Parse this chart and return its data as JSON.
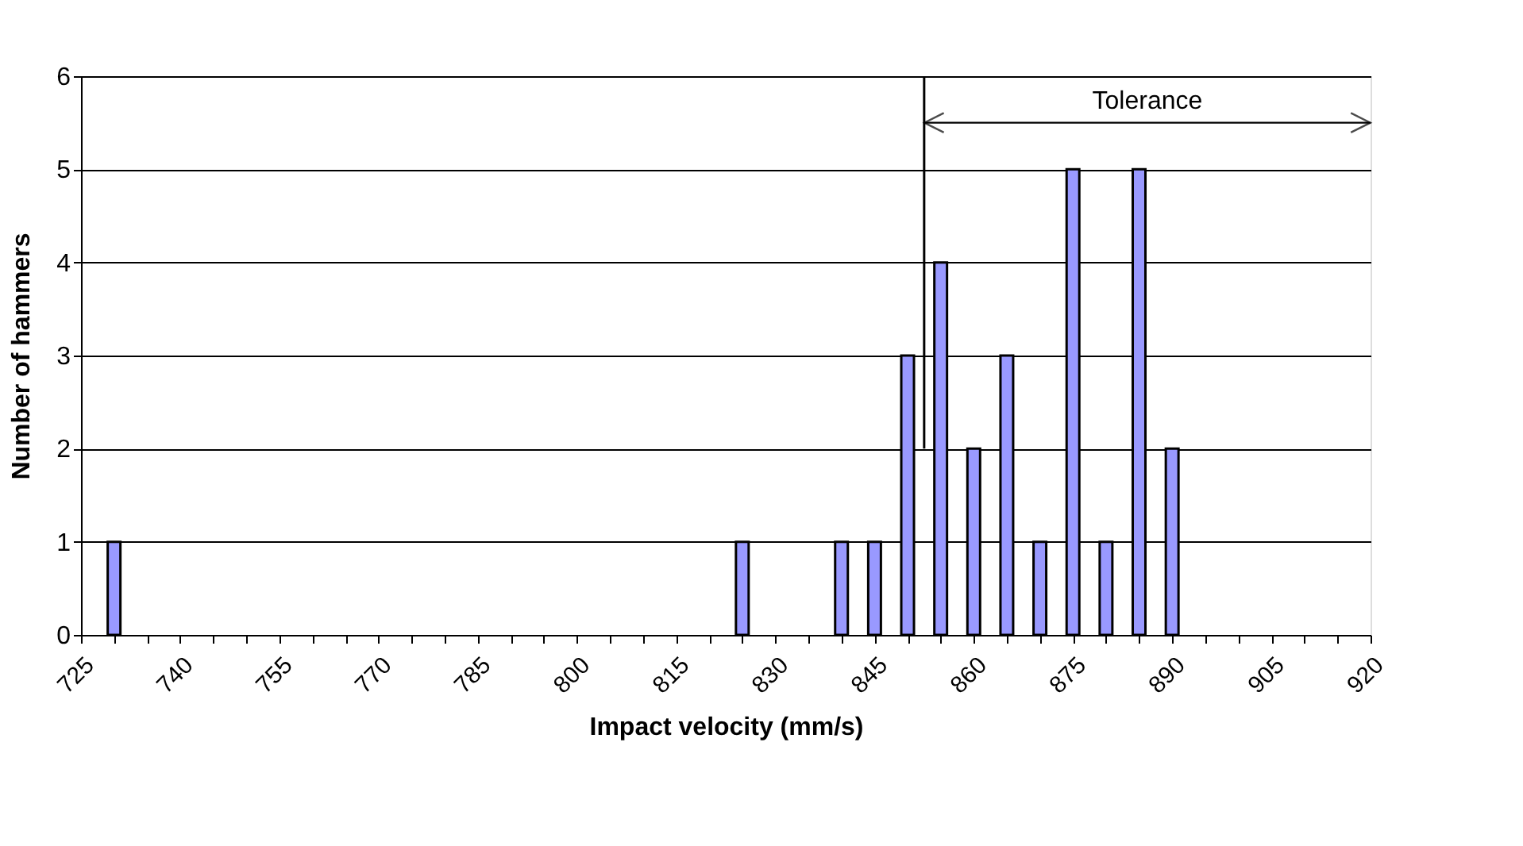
{
  "chart_data": {
    "type": "bar",
    "xlabel": "Impact velocity (mm/s)",
    "ylabel": "Number of hammers",
    "x": [
      730,
      825,
      840,
      845,
      850,
      855,
      860,
      865,
      870,
      875,
      880,
      885,
      890
    ],
    "values": [
      1,
      1,
      1,
      1,
      3,
      4,
      2,
      3,
      1,
      5,
      1,
      5,
      2
    ],
    "color": "#9999ff",
    "xlim": [
      725,
      920
    ],
    "xticks": [
      725,
      {
        "value": 730,
        "label": null
      },
      {
        "value": 735,
        "label": null
      },
      740,
      {
        "value": 745,
        "label": null
      },
      {
        "value": 750,
        "label": null
      },
      755,
      {
        "value": 760,
        "label": null
      },
      {
        "value": 765,
        "label": null
      },
      770,
      {
        "value": 775,
        "label": null
      },
      {
        "value": 780,
        "label": null
      },
      785,
      {
        "value": 790,
        "label": null
      },
      {
        "value": 795,
        "label": null
      },
      800,
      {
        "value": 805,
        "label": null
      },
      {
        "value": 810,
        "label": null
      },
      815,
      {
        "value": 820,
        "label": null
      },
      {
        "value": 825,
        "label": null
      },
      830,
      {
        "value": 835,
        "label": null
      },
      {
        "value": 840,
        "label": null
      },
      845,
      {
        "value": 850,
        "label": null
      },
      {
        "value": 855,
        "label": null
      },
      860,
      {
        "value": 865,
        "label": null
      },
      {
        "value": 870,
        "label": null
      },
      875,
      {
        "value": 880,
        "label": null
      },
      {
        "value": 885,
        "label": null
      },
      890,
      {
        "value": 895,
        "label": null
      },
      {
        "value": 900,
        "label": null
      },
      905,
      {
        "value": 910,
        "label": null
      },
      {
        "value": 915,
        "label": null
      },
      920
    ],
    "ylim": [
      0,
      6
    ],
    "yticks": [
      0,
      1,
      2,
      3,
      4,
      5,
      6
    ],
    "grid": "y",
    "ref_lines": [
      {
        "axis": "x",
        "value": 852.5,
        "color": "#000000"
      }
    ],
    "annotations": [
      "Tolerance"
    ]
  }
}
